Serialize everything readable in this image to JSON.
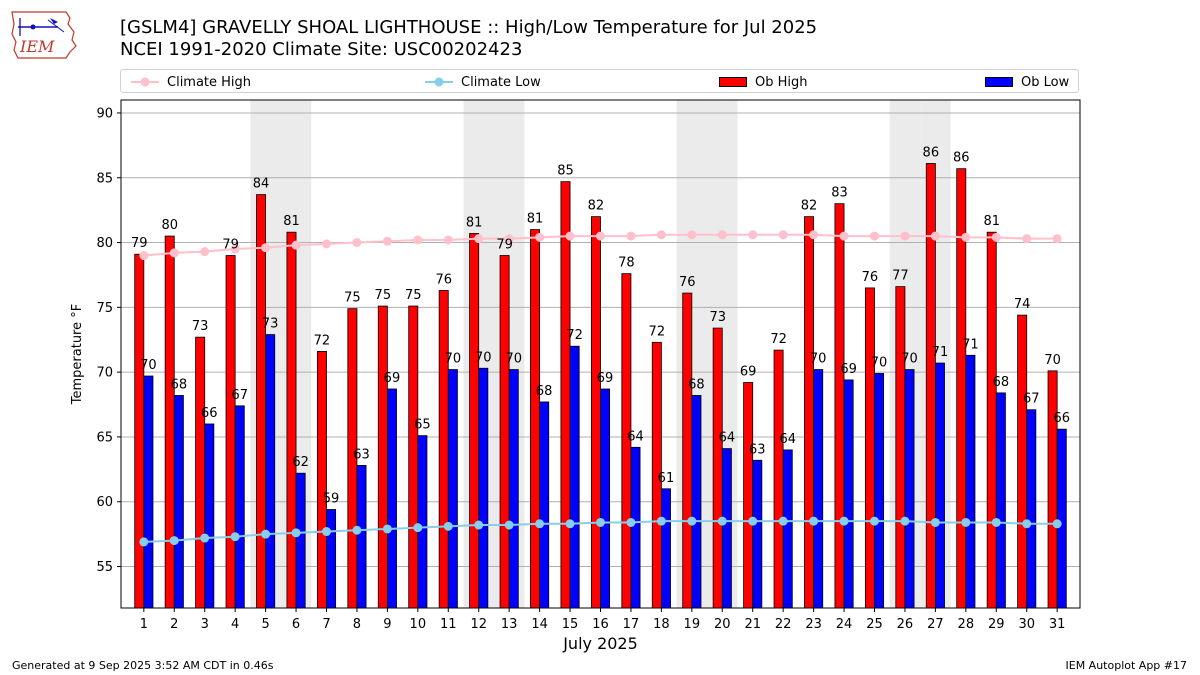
{
  "logo": {
    "text": "IEM"
  },
  "title_line1": "[GSLM4] GRAVELLY SHOAL LIGHTHOUSE :: High/Low Temperature for Jul 2025",
  "title_line2": "NCEI 1991-2020 Climate Site: USC00202423",
  "footer_left": "Generated at 9 Sep 2025 3:52 AM CDT in 0.46s",
  "footer_right": "IEM Autoplot App #17",
  "colors": {
    "ob_high": "#ff0000",
    "ob_low": "#0000ff",
    "climate_high": "#ffc0cb",
    "climate_low": "#87ceeb",
    "weekend_shade": "#ebebeb",
    "grid": "#b0b0b0"
  },
  "chart_data": {
    "type": "bar",
    "xlabel": "July 2025",
    "ylabel": "Temperature °F",
    "ylim": [
      51.8,
      91.0
    ],
    "yticks": [
      55,
      60,
      65,
      70,
      75,
      80,
      85,
      90
    ],
    "grid": "horizontal",
    "legend_position": "top",
    "categories": [
      "1",
      "2",
      "3",
      "4",
      "5",
      "6",
      "7",
      "8",
      "9",
      "10",
      "11",
      "12",
      "13",
      "14",
      "15",
      "16",
      "17",
      "18",
      "19",
      "20",
      "21",
      "22",
      "23",
      "24",
      "25",
      "26",
      "27",
      "28",
      "29",
      "30",
      "31"
    ],
    "shaded_days": [
      5,
      6,
      12,
      13,
      19,
      20,
      26,
      27
    ],
    "series": [
      {
        "name": "Climate High",
        "kind": "line",
        "values": [
          79.0,
          79.2,
          79.3,
          79.5,
          79.6,
          79.8,
          79.9,
          80.0,
          80.1,
          80.2,
          80.2,
          80.3,
          80.3,
          80.4,
          80.5,
          80.5,
          80.5,
          80.6,
          80.6,
          80.6,
          80.6,
          80.6,
          80.6,
          80.5,
          80.5,
          80.5,
          80.5,
          80.4,
          80.4,
          80.3,
          80.3
        ]
      },
      {
        "name": "Climate Low",
        "kind": "line",
        "values": [
          56.9,
          57.0,
          57.2,
          57.3,
          57.5,
          57.6,
          57.7,
          57.8,
          57.9,
          58.0,
          58.1,
          58.2,
          58.2,
          58.3,
          58.3,
          58.4,
          58.4,
          58.5,
          58.5,
          58.5,
          58.5,
          58.5,
          58.5,
          58.5,
          58.5,
          58.5,
          58.4,
          58.4,
          58.4,
          58.3,
          58.3
        ]
      },
      {
        "name": "Ob High",
        "kind": "bar",
        "values": [
          79.1,
          80.5,
          72.7,
          79.0,
          83.7,
          80.8,
          71.6,
          74.9,
          75.1,
          75.1,
          76.3,
          80.7,
          79.0,
          81.0,
          84.7,
          82.0,
          77.6,
          72.3,
          76.1,
          73.4,
          69.2,
          71.7,
          82.0,
          83.0,
          76.5,
          76.6,
          86.1,
          85.7,
          80.8,
          74.4,
          70.1
        ],
        "labels": [
          "79",
          "80",
          "73",
          "79",
          "84",
          "81",
          "72",
          "75",
          "75",
          "75",
          "76",
          "81",
          "79",
          "81",
          "85",
          "82",
          "78",
          "72",
          "76",
          "73",
          "69",
          "72",
          "82",
          "83",
          "76",
          "77",
          "86",
          "86",
          "81",
          "74",
          "70"
        ]
      },
      {
        "name": "Ob Low",
        "kind": "bar",
        "values": [
          69.7,
          68.2,
          66.0,
          67.4,
          72.9,
          62.2,
          59.4,
          62.8,
          68.7,
          65.1,
          70.2,
          70.3,
          70.2,
          67.7,
          72.0,
          68.7,
          64.2,
          61.0,
          68.2,
          64.1,
          63.2,
          64.0,
          70.2,
          69.4,
          69.9,
          70.2,
          70.7,
          71.3,
          68.4,
          67.1,
          65.6
        ],
        "labels": [
          "70",
          "68",
          "66",
          "67",
          "73",
          "62",
          "59",
          "63",
          "69",
          "65",
          "70",
          "70",
          "70",
          "68",
          "72",
          "69",
          "64",
          "61",
          "68",
          "64",
          "63",
          "64",
          "70",
          "69",
          "70",
          "70",
          "71",
          "71",
          "68",
          "67",
          "66"
        ]
      }
    ]
  }
}
